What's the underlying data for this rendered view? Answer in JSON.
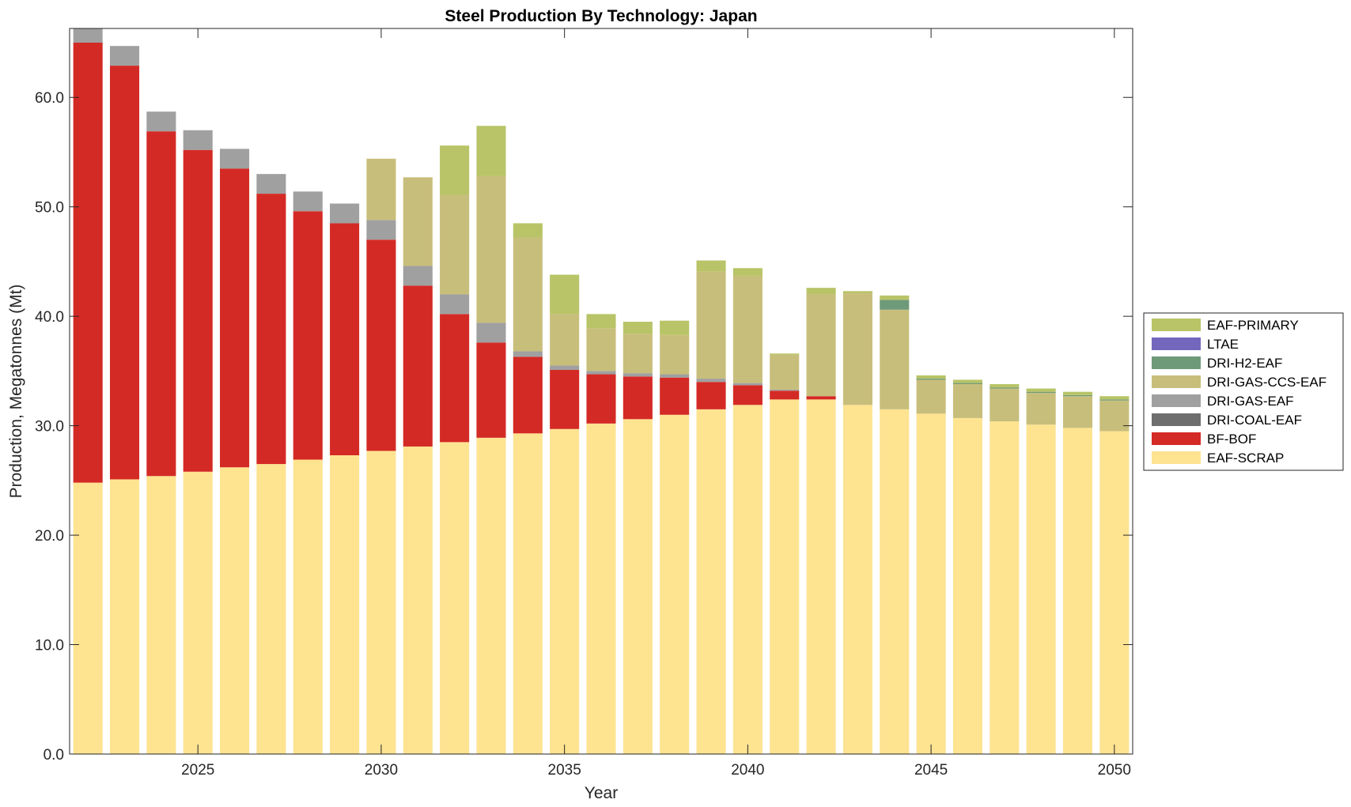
{
  "chart_data": {
    "type": "bar",
    "stacked": true,
    "title": "Steel Production By Technology: Japan",
    "xlabel": "Year",
    "ylabel": "Production, Megatonnes (Mt)",
    "xlim": [
      2021.5,
      2050.5
    ],
    "ylim": [
      0,
      66.3
    ],
    "yticks": [
      0,
      10,
      20,
      30,
      40,
      50,
      60
    ],
    "ytick_labels": [
      "0.0",
      "10.0",
      "20.0",
      "30.0",
      "40.0",
      "50.0",
      "60.0"
    ],
    "xticks": [
      2025,
      2030,
      2035,
      2040,
      2045,
      2050
    ],
    "xtick_labels": [
      "2025",
      "2030",
      "2035",
      "2040",
      "2045",
      "2050"
    ],
    "grid": false,
    "legend_position": "outside-right",
    "x": [
      2022,
      2023,
      2024,
      2025,
      2026,
      2027,
      2028,
      2029,
      2030,
      2031,
      2032,
      2033,
      2034,
      2035,
      2036,
      2037,
      2038,
      2039,
      2040,
      2041,
      2042,
      2043,
      2044,
      2045,
      2046,
      2047,
      2048,
      2049,
      2050
    ],
    "series": [
      {
        "name": "EAF-SCRAP",
        "color": "#fee391",
        "values": [
          24.8,
          25.1,
          25.4,
          25.8,
          26.2,
          26.5,
          26.9,
          27.3,
          27.7,
          28.1,
          28.5,
          28.9,
          29.3,
          29.7,
          30.2,
          30.6,
          31.0,
          31.5,
          31.9,
          32.4,
          32.4,
          31.9,
          31.5,
          31.1,
          30.7,
          30.4,
          30.1,
          29.8,
          29.5
        ]
      },
      {
        "name": "BF-BOF",
        "color": "#d42a25",
        "values": [
          40.2,
          37.8,
          31.5,
          29.4,
          27.3,
          24.7,
          22.7,
          21.2,
          19.3,
          14.7,
          11.7,
          8.7,
          7.0,
          5.4,
          4.5,
          3.9,
          3.4,
          2.5,
          1.8,
          0.8,
          0.3,
          0,
          0,
          0,
          0,
          0,
          0,
          0,
          0
        ]
      },
      {
        "name": "DRI-COAL-EAF",
        "color": "#6e6e6e",
        "values": [
          0,
          0,
          0,
          0,
          0,
          0,
          0,
          0,
          0,
          0,
          0,
          0,
          0,
          0,
          0,
          0,
          0,
          0,
          0,
          0,
          0,
          0,
          0,
          0,
          0,
          0,
          0,
          0,
          0
        ]
      },
      {
        "name": "DRI-GAS-EAF",
        "color": "#a0a0a0",
        "values": [
          1.3,
          1.8,
          1.8,
          1.8,
          1.8,
          1.8,
          1.8,
          1.8,
          1.8,
          1.8,
          1.8,
          1.8,
          0.5,
          0.4,
          0.3,
          0.3,
          0.3,
          0.3,
          0.2,
          0.1,
          0,
          0,
          0,
          0,
          0,
          0,
          0,
          0,
          0
        ]
      },
      {
        "name": "DRI-GAS-CCS-EAF",
        "color": "#c8be7b",
        "values": [
          0,
          0,
          0,
          0,
          0,
          0,
          0,
          0,
          5.6,
          8.1,
          9.1,
          13.4,
          10.4,
          4.7,
          3.9,
          3.6,
          3.6,
          9.8,
          9.8,
          3.2,
          9.3,
          10.2,
          9.1,
          3.1,
          3.1,
          3.0,
          2.9,
          2.9,
          2.8
        ]
      },
      {
        "name": "DRI-H2-EAF",
        "color": "#6f9a7a",
        "values": [
          0,
          0,
          0,
          0,
          0,
          0,
          0,
          0,
          0,
          0,
          0,
          0,
          0,
          0,
          0,
          0,
          0,
          0,
          0,
          0,
          0,
          0,
          0.9,
          0.1,
          0.1,
          0.1,
          0.1,
          0.1,
          0.1
        ]
      },
      {
        "name": "LTAE",
        "color": "#7366bd",
        "values": [
          0,
          0,
          0,
          0,
          0,
          0,
          0,
          0,
          0,
          0,
          0,
          0,
          0,
          0,
          0,
          0,
          0,
          0,
          0,
          0,
          0,
          0,
          0,
          0,
          0,
          0,
          0,
          0,
          0
        ]
      },
      {
        "name": "EAF-PRIMARY",
        "color": "#b8c467",
        "values": [
          0,
          0,
          0,
          0,
          0,
          0,
          0,
          0,
          0,
          0,
          4.5,
          4.6,
          1.3,
          3.6,
          1.3,
          1.1,
          1.3,
          1.0,
          0.7,
          0.1,
          0.6,
          0.2,
          0.4,
          0.3,
          0.3,
          0.3,
          0.3,
          0.3,
          0.3
        ]
      }
    ],
    "legend_order": [
      "EAF-PRIMARY",
      "LTAE",
      "DRI-H2-EAF",
      "DRI-GAS-CCS-EAF",
      "DRI-GAS-EAF",
      "DRI-COAL-EAF",
      "BF-BOF",
      "EAF-SCRAP"
    ]
  }
}
